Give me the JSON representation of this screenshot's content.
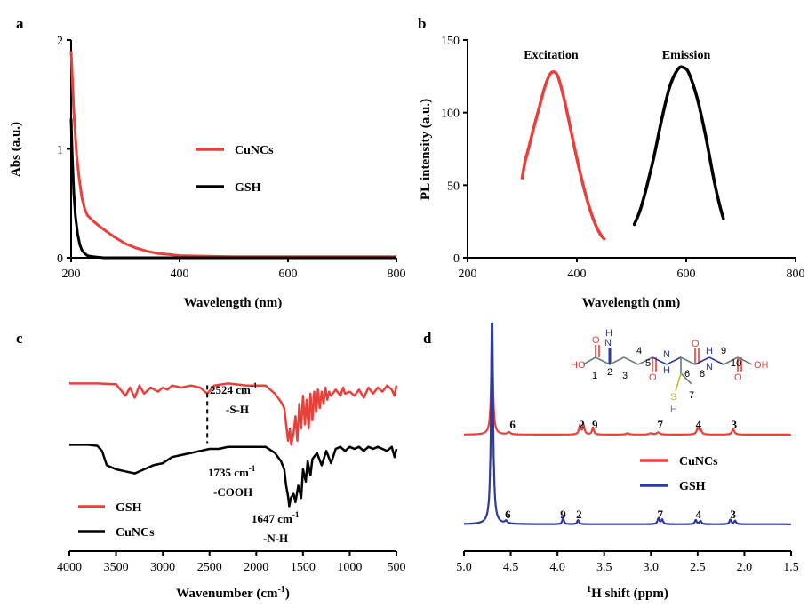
{
  "chart_data": [
    {
      "id": "a",
      "panel_label": "a",
      "type": "line",
      "xlabel": "Wavelength (nm)",
      "ylabel": "Abs (a.u.)",
      "xlim": [
        200,
        800
      ],
      "ylim": [
        0,
        2
      ],
      "xticks": [
        "200",
        "400",
        "600",
        "800"
      ],
      "yticks": [
        "0",
        "1",
        "2"
      ],
      "legend_placement": "right",
      "series": [
        {
          "name": "CuNCs",
          "color": "#e8413c",
          "x": [
            200,
            205,
            210,
            215,
            220,
            225,
            230,
            240,
            250,
            260,
            280,
            300,
            320,
            340,
            360,
            380,
            400,
            450,
            500,
            600,
            700,
            800
          ],
          "y": [
            1.9,
            1.35,
            0.95,
            0.72,
            0.55,
            0.45,
            0.39,
            0.34,
            0.3,
            0.26,
            0.19,
            0.13,
            0.09,
            0.06,
            0.04,
            0.03,
            0.02,
            0.015,
            0.01,
            0.01,
            0.01,
            0.01
          ]
        },
        {
          "name": "GSH",
          "color": "#000000",
          "x": [
            200,
            202,
            205,
            208,
            212,
            216,
            220,
            225,
            230,
            240,
            260,
            300,
            400,
            600,
            800
          ],
          "y": [
            1.28,
            0.95,
            0.6,
            0.38,
            0.22,
            0.12,
            0.07,
            0.04,
            0.02,
            0.01,
            0.0,
            0.0,
            0.0,
            0.0,
            0.0
          ]
        }
      ]
    },
    {
      "id": "b",
      "panel_label": "b",
      "type": "line",
      "xlabel": "Wavelength (nm)",
      "ylabel": "PL intensity (a.u.)",
      "xlim": [
        200,
        800
      ],
      "ylim": [
        0,
        150
      ],
      "xticks": [
        "200",
        "400",
        "600",
        "800"
      ],
      "yticks": [
        "0",
        "50",
        "100",
        "150"
      ],
      "series": [
        {
          "name": "Excitation",
          "color": "#e8413c",
          "x": [
            300,
            305,
            310,
            320,
            330,
            340,
            350,
            358,
            365,
            375,
            385,
            395,
            405,
            415,
            425,
            435,
            445,
            450
          ],
          "y": [
            55,
            66,
            73,
            88,
            102,
            116,
            126,
            128,
            125,
            112,
            95,
            77,
            60,
            45,
            32,
            22,
            15,
            13
          ]
        },
        {
          "name": "Emission",
          "color": "#000000",
          "x": [
            505,
            515,
            525,
            540,
            555,
            570,
            585,
            595,
            605,
            620,
            635,
            650,
            660,
            668
          ],
          "y": [
            23,
            32,
            45,
            68,
            95,
            118,
            130,
            131,
            127,
            110,
            85,
            55,
            38,
            27
          ]
        }
      ]
    },
    {
      "id": "c",
      "panel_label": "c",
      "type": "line",
      "xlabel": "Wavenumber (cm",
      "xlabel_sup": "-1",
      "xlabel_tail": ")",
      "xlim": [
        4000,
        500
      ],
      "xticks": [
        "4000",
        "3500",
        "3000",
        "2500",
        "2000",
        "1500",
        "1000",
        "500"
      ],
      "xtick_values": [
        4000,
        3500,
        3000,
        2500,
        2000,
        1500,
        1000,
        500
      ],
      "series": [
        {
          "name": "GSH",
          "color": "#e8413c",
          "offset": 0.82,
          "x": [
            4000,
            3700,
            3500,
            3400,
            3350,
            3300,
            3250,
            3200,
            3130,
            3050,
            3000,
            2950,
            2900,
            2800,
            2700,
            2600,
            2524,
            2450,
            2300,
            2100,
            1900,
            1800,
            1735,
            1700,
            1680,
            1660,
            1640,
            1625,
            1600,
            1580,
            1560,
            1540,
            1520,
            1500,
            1480,
            1460,
            1440,
            1420,
            1400,
            1380,
            1360,
            1340,
            1320,
            1300,
            1280,
            1260,
            1240,
            1220,
            1200,
            1150,
            1100,
            1070,
            1050,
            1000,
            950,
            900,
            850,
            800,
            750,
            700,
            650,
            600,
            550,
            520,
            500
          ],
          "y": [
            0,
            0,
            -0.004,
            -0.06,
            -0.02,
            -0.07,
            -0.01,
            -0.05,
            -0.02,
            -0.04,
            -0.02,
            -0.03,
            -0.01,
            -0.02,
            -0.01,
            -0.02,
            -0.05,
            -0.01,
            0,
            -0.01,
            -0.01,
            -0.05,
            -0.09,
            -0.12,
            -0.2,
            -0.28,
            -0.22,
            -0.3,
            -0.24,
            -0.16,
            -0.28,
            -0.1,
            -0.22,
            -0.06,
            -0.2,
            -0.08,
            -0.22,
            -0.05,
            -0.18,
            -0.04,
            -0.14,
            -0.03,
            -0.12,
            -0.04,
            -0.1,
            -0.02,
            -0.08,
            -0.04,
            -0.06,
            -0.03,
            -0.06,
            -0.02,
            -0.05,
            -0.04,
            -0.06,
            -0.03,
            -0.07,
            -0.02,
            -0.05,
            -0.02,
            -0.04,
            -0.01,
            -0.03,
            -0.06,
            -0.01
          ]
        },
        {
          "name": "CuNCs",
          "color": "#000000",
          "offset": 0.52,
          "x": [
            4000,
            3800,
            3700,
            3650,
            3600,
            3500,
            3400,
            3300,
            3200,
            3100,
            3000,
            2900,
            2800,
            2700,
            2600,
            2500,
            2400,
            2300,
            2200,
            2100,
            2000,
            1900,
            1800,
            1735,
            1700,
            1680,
            1660,
            1647,
            1630,
            1600,
            1580,
            1550,
            1520,
            1500,
            1470,
            1450,
            1420,
            1400,
            1350,
            1300,
            1250,
            1200,
            1150,
            1100,
            1050,
            1000,
            950,
            900,
            850,
            800,
            750,
            700,
            650,
            600,
            550,
            520,
            500
          ],
          "y": [
            0,
            0,
            -0.005,
            -0.03,
            -0.1,
            -0.12,
            -0.13,
            -0.14,
            -0.12,
            -0.1,
            -0.09,
            -0.06,
            -0.05,
            -0.04,
            -0.03,
            -0.02,
            -0.02,
            -0.01,
            -0.01,
            -0.01,
            -0.01,
            -0.01,
            -0.04,
            -0.08,
            -0.12,
            -0.2,
            -0.25,
            -0.3,
            -0.26,
            -0.24,
            -0.28,
            -0.2,
            -0.26,
            -0.12,
            -0.18,
            -0.08,
            -0.15,
            -0.07,
            -0.04,
            -0.1,
            -0.03,
            -0.09,
            -0.02,
            -0.01,
            -0.03,
            -0.01,
            -0.02,
            -0.01,
            -0.03,
            -0.01,
            -0.02,
            -0.01,
            -0.02,
            -0.03,
            -0.01,
            -0.06,
            -0.02
          ]
        }
      ],
      "marker_line_x": 2524,
      "annotations": [
        {
          "wavenumber": "2524 cm",
          "sup": "-1",
          "group": "-S-H"
        },
        {
          "wavenumber": "1735 cm",
          "sup": "-1",
          "group": "-COOH"
        },
        {
          "wavenumber": "1647 cm",
          "sup": "-1",
          "group": "-N-H"
        }
      ]
    },
    {
      "id": "d",
      "panel_label": "d",
      "type": "line",
      "xlabel_sup": "1",
      "xlabel": "H shift (ppm)",
      "xlim": [
        5.0,
        1.5
      ],
      "xticks": [
        "5.0",
        "4.5",
        "4.0",
        "3.5",
        "3.0",
        "2.5",
        "2.0",
        "1.5"
      ],
      "xtick_values": [
        5.0,
        4.5,
        4.0,
        3.5,
        3.0,
        2.5,
        2.0,
        1.5
      ],
      "series": [
        {
          "name": "CuNCs",
          "color": "#e8413c",
          "offset": 0.52,
          "peaks": [
            [
              4.7,
              0.42,
              0.012
            ],
            [
              4.52,
              0.01,
              0.02
            ],
            [
              3.76,
              0.04,
              0.012
            ],
            [
              3.72,
              0.04,
              0.012
            ],
            [
              3.62,
              0.03,
              0.012
            ],
            [
              3.25,
              0.006,
              0.02
            ],
            [
              3.0,
              0.006,
              0.02
            ],
            [
              2.92,
              0.01,
              0.02
            ],
            [
              2.5,
              0.025,
              0.015
            ],
            [
              2.47,
              0.02,
              0.015
            ],
            [
              2.12,
              0.025,
              0.015
            ]
          ]
        },
        {
          "name": "GSH",
          "color": "#2d3a9e",
          "offset": 0.12,
          "peaks": [
            [
              4.7,
              0.98,
              0.012
            ],
            [
              4.55,
              0.012,
              0.015
            ],
            [
              3.94,
              0.03,
              0.01
            ],
            [
              3.78,
              0.018,
              0.012
            ],
            [
              2.92,
              0.025,
              0.012
            ],
            [
              2.88,
              0.02,
              0.012
            ],
            [
              2.52,
              0.018,
              0.012
            ],
            [
              2.47,
              0.015,
              0.012
            ],
            [
              2.15,
              0.02,
              0.012
            ],
            [
              2.1,
              0.015,
              0.012
            ]
          ]
        }
      ],
      "peak_labels_top": [
        {
          "label": "6",
          "ppm": 4.48
        },
        {
          "label": "2",
          "ppm": 3.74
        },
        {
          "label": "9",
          "ppm": 3.6
        },
        {
          "label": "7",
          "ppm": 2.9
        },
        {
          "label": "4",
          "ppm": 2.49
        },
        {
          "label": "3",
          "ppm": 2.11
        }
      ],
      "peak_labels_bottom": [
        {
          "label": "6",
          "ppm": 4.53
        },
        {
          "label": "9",
          "ppm": 3.94
        },
        {
          "label": "2",
          "ppm": 3.77
        },
        {
          "label": "7",
          "ppm": 2.9
        },
        {
          "label": "4",
          "ppm": 2.49
        },
        {
          "label": "3",
          "ppm": 2.12
        }
      ],
      "molecule_labels": {
        "n1": "1",
        "n2": "2",
        "n3": "3",
        "n4": "4",
        "n5": "5",
        "n6": "6",
        "n7": "7",
        "n8": "8",
        "n9": "9",
        "n10": "10",
        "HO_left": "HO",
        "OH_right": "OH",
        "O": "O",
        "N": "N",
        "H": "H",
        "S": "S"
      }
    }
  ]
}
